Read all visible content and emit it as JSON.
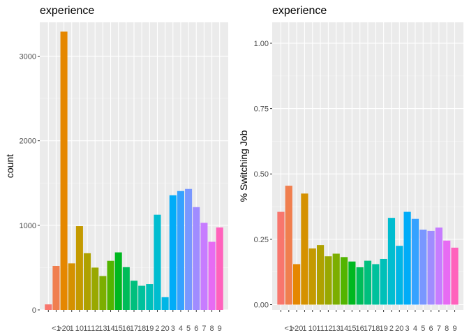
{
  "chart_data": [
    {
      "type": "bar",
      "title": "experience",
      "xlabel": "",
      "ylabel": "count",
      "ylim": [
        0,
        3400
      ],
      "yticks": [
        0,
        1000,
        2000,
        3000
      ],
      "ytick_labels": [
        "0",
        "1000",
        "2000",
        "3000"
      ],
      "grid": true,
      "categories": [
        "",
        "<1",
        ">20",
        "1",
        "10",
        "11",
        "12",
        "13",
        "14",
        "15",
        "16",
        "17",
        "18",
        "19",
        "2",
        "20",
        "3",
        "4",
        "5",
        "6",
        "7",
        "8",
        "9"
      ],
      "values": [
        65,
        520,
        3290,
        550,
        990,
        670,
        500,
        400,
        580,
        680,
        505,
        345,
        285,
        305,
        1125,
        150,
        1355,
        1405,
        1430,
        1215,
        1030,
        805,
        975
      ],
      "colors": [
        "#F8766D",
        "#F07F4F",
        "#E58700",
        "#D59100",
        "#C49A00",
        "#AFA100",
        "#99A800",
        "#7CAE00",
        "#53B400",
        "#00B81F",
        "#00BC59",
        "#00BF7D",
        "#00C19C",
        "#00C0B8",
        "#00BDD0",
        "#00B6E6",
        "#00ACF8",
        "#35A2FF",
        "#7997FF",
        "#A08CFF",
        "#C77CFF",
        "#E76BF3",
        "#FF62BC"
      ]
    },
    {
      "type": "bar",
      "title": "experience",
      "xlabel": "",
      "ylabel": "% Switching Job",
      "ylim": [
        -0.02,
        1.08
      ],
      "yticks": [
        0,
        0.25,
        0.5,
        0.75,
        1
      ],
      "ytick_labels": [
        "0.00",
        "0.25",
        "0.50",
        "0.75",
        "1.00"
      ],
      "grid": true,
      "categories": [
        "",
        "<1",
        ">20",
        "1",
        "10",
        "11",
        "12",
        "13",
        "14",
        "15",
        "16",
        "17",
        "18",
        "19",
        "2",
        "20",
        "3",
        "4",
        "5",
        "6",
        "7",
        "8",
        "9"
      ],
      "values": [
        0.355,
        0.455,
        0.155,
        0.425,
        0.215,
        0.228,
        0.185,
        0.195,
        0.182,
        0.165,
        0.143,
        0.168,
        0.155,
        0.175,
        0.332,
        0.225,
        0.355,
        0.328,
        0.287,
        0.282,
        0.295,
        0.245,
        0.218
      ],
      "colors": [
        "#F8766D",
        "#F07F4F",
        "#E58700",
        "#D59100",
        "#C49A00",
        "#AFA100",
        "#99A800",
        "#7CAE00",
        "#53B400",
        "#00B81F",
        "#00BC59",
        "#00BF7D",
        "#00C19C",
        "#00C0B8",
        "#00BDD0",
        "#00B6E6",
        "#00ACF8",
        "#35A2FF",
        "#7997FF",
        "#A08CFF",
        "#C77CFF",
        "#E76BF3",
        "#FF62BC"
      ]
    }
  ]
}
